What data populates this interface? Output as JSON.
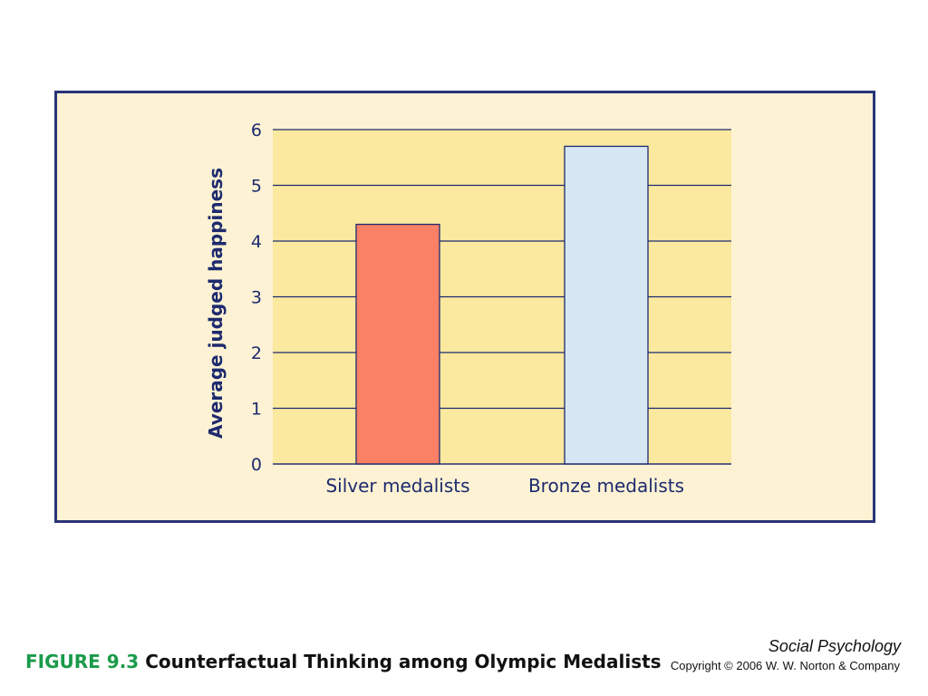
{
  "figure": {
    "number": "FIGURE 9.3",
    "title": "Counterfactual Thinking among Olympic Medalists",
    "book": "Social Psychology",
    "copyright": "Copyright © 2006 W. W. Norton & Company"
  },
  "colors": {
    "frame_background": "#fdf3d4",
    "plot_background": "#fbe9a0",
    "frame_border": "#2a3479",
    "silver_bar": "#fa8165",
    "bronze_bar": "#d6e6f2",
    "figure_number": "#1a9b4a"
  },
  "chart_data": {
    "type": "bar",
    "ylabel": "Average judged happiness",
    "xlabel": "",
    "categories": [
      "Silver medalists",
      "Bronze medalists"
    ],
    "values": [
      4.3,
      5.7
    ],
    "ylim": [
      0,
      6
    ],
    "yticks": [
      0,
      1,
      2,
      3,
      4,
      5,
      6
    ],
    "grid": true,
    "legend": "none"
  }
}
